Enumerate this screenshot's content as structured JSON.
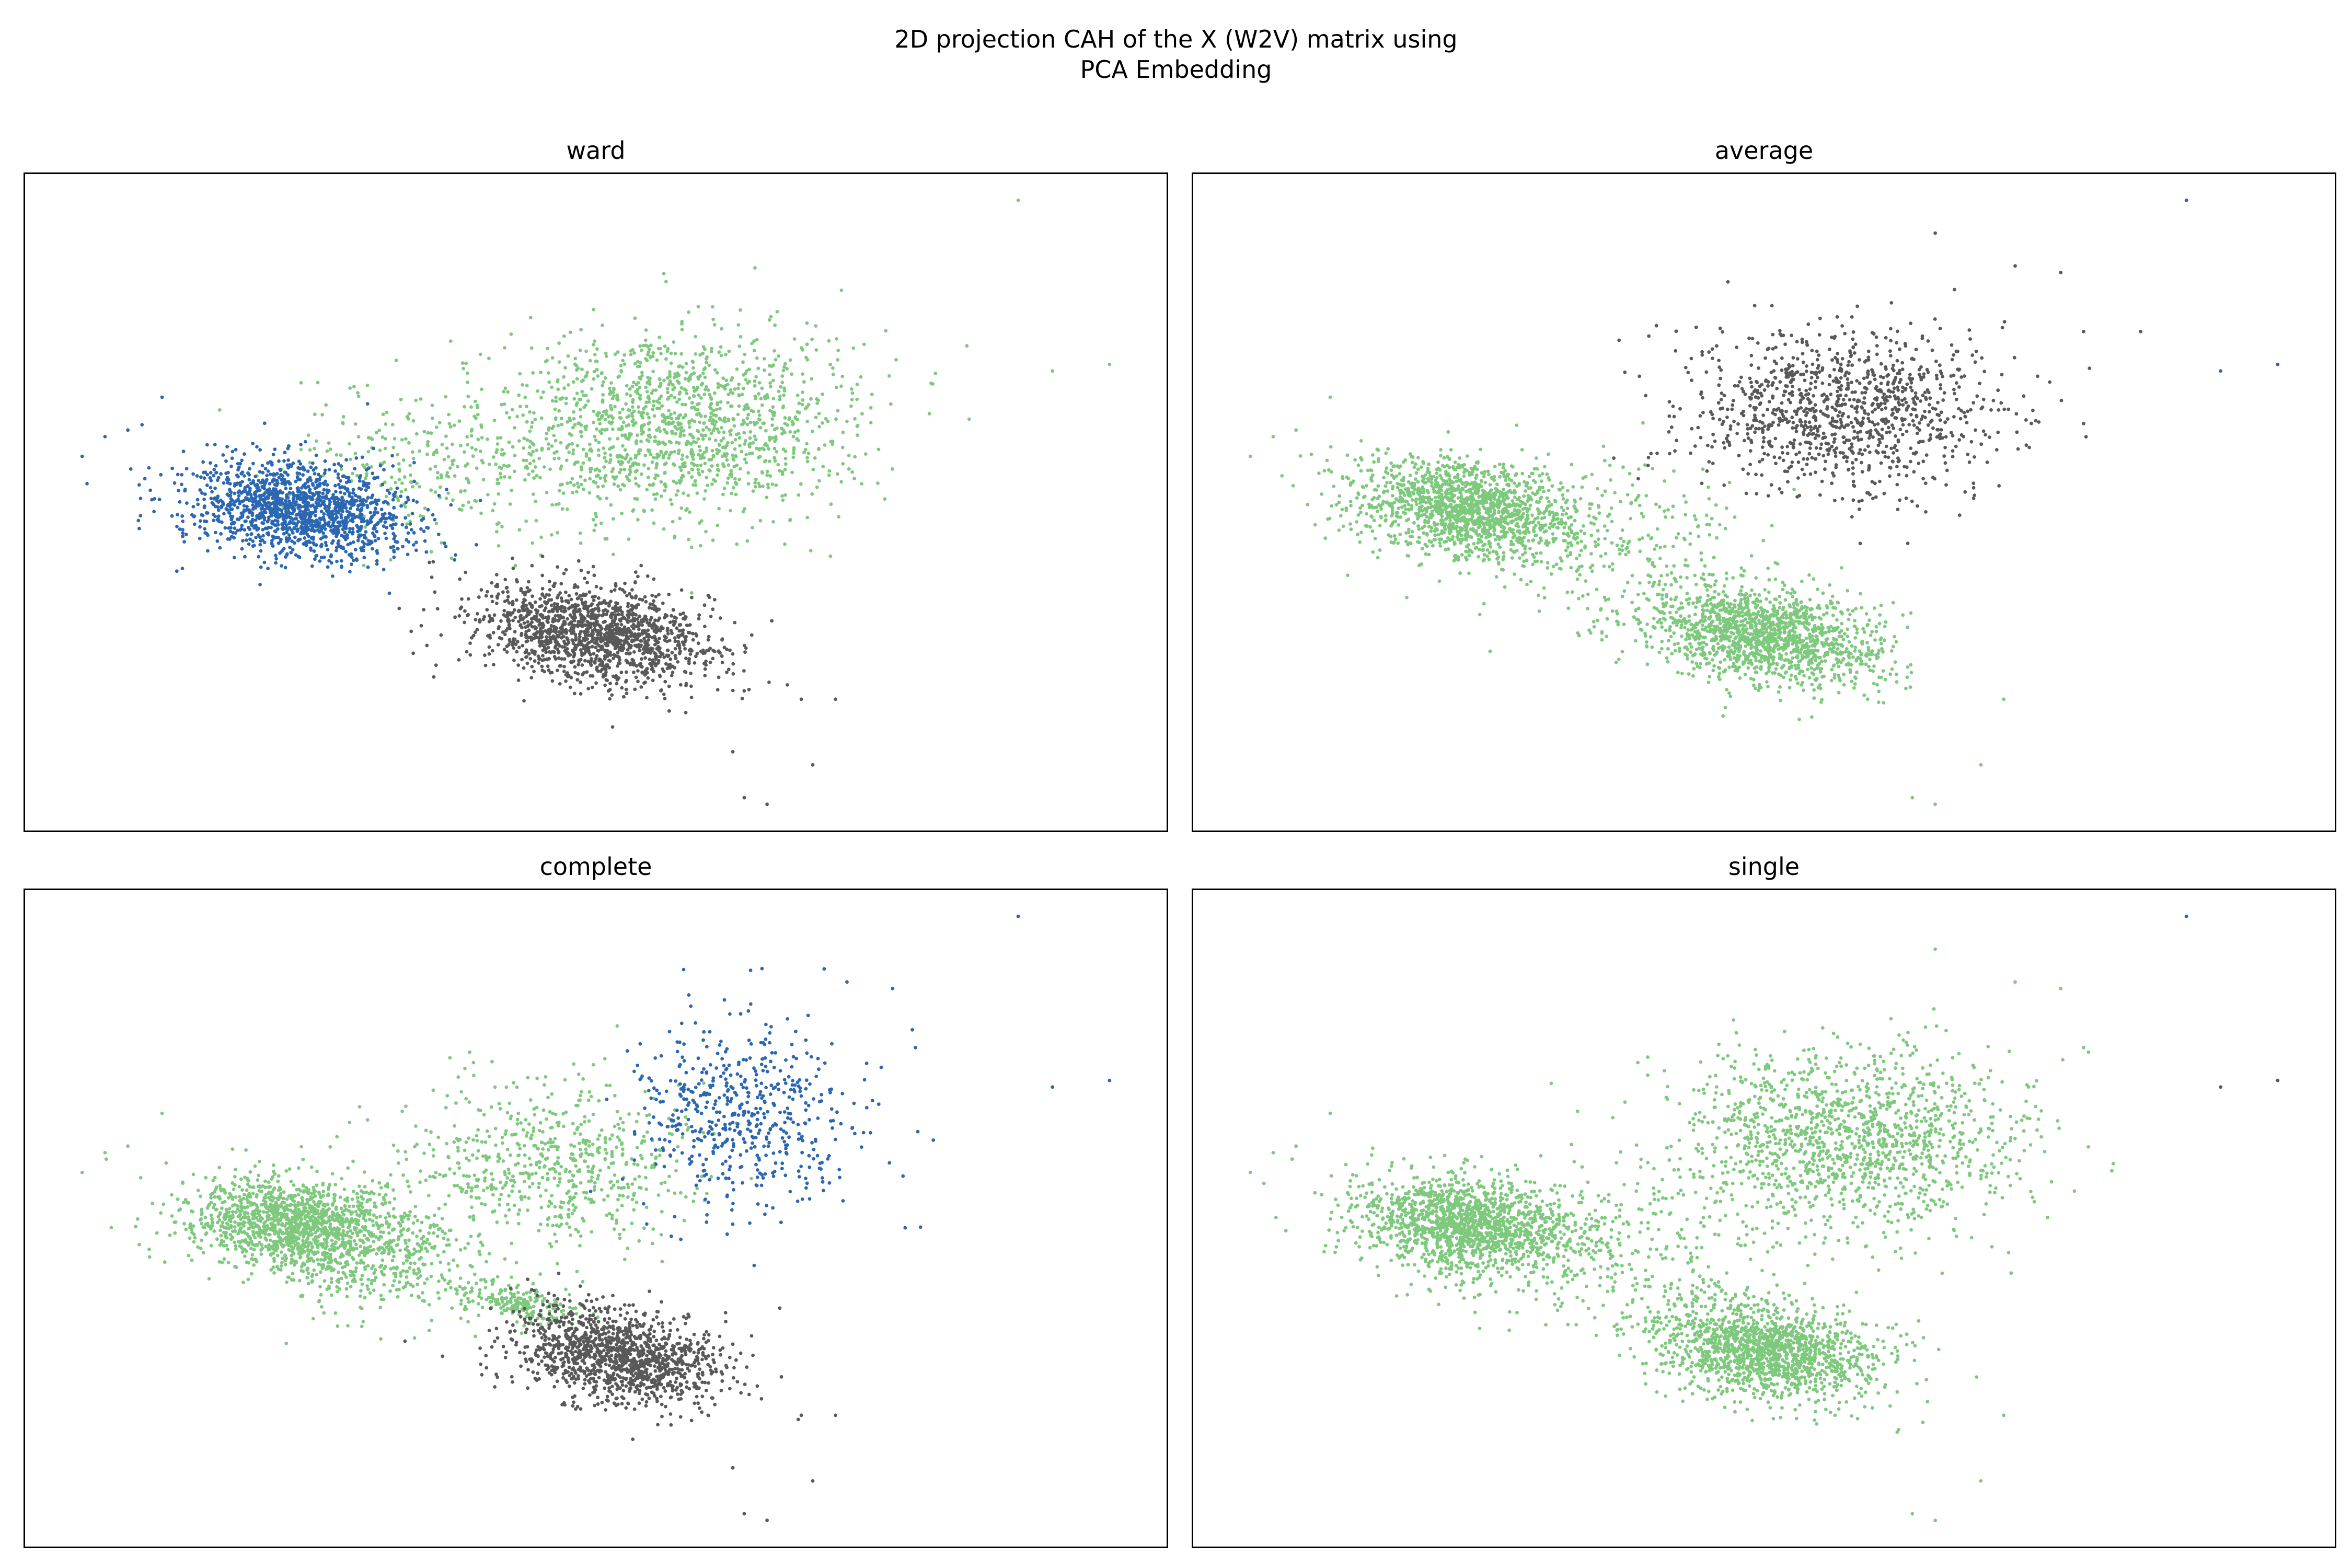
{
  "figure": {
    "title_line1": "2D projection CAH of the X (W2V) matrix using",
    "title_line2": "PCA Embedding"
  },
  "colors": {
    "green": "#7fc97f",
    "gray": "#595959",
    "blue": "#2c67b1"
  },
  "chart_data": [
    {
      "type": "scatter",
      "title": "ward",
      "xlabel": "",
      "ylabel": "",
      "xlim": [
        0,
        100
      ],
      "ylim": [
        0,
        100
      ],
      "grid": false,
      "ticks": false,
      "series": [
        {
          "color": "#7fc97f",
          "clusters": [
            {
              "cx": 57,
              "cy": 62,
              "sx": 7.5,
              "sy": 7,
              "n": 1400
            },
            {
              "cx": 36,
              "cy": 56,
              "sx": 7,
              "sy": 6,
              "n": 300
            }
          ],
          "outliers": [
            [
              87,
              96
            ],
            [
              90,
              70
            ],
            [
              95,
              71
            ]
          ]
        },
        {
          "color": "#595959",
          "clusters": [
            {
              "cx": 50,
              "cy": 30,
              "sx": 5.5,
              "sy": 3.5,
              "rot": -25,
              "n": 1500
            }
          ],
          "outliers": [
            [
              63,
              5
            ],
            [
              65,
              4
            ],
            [
              69,
              10
            ],
            [
              62,
              12
            ],
            [
              68,
              20
            ],
            [
              34,
              27
            ],
            [
              38,
              26
            ],
            [
              71,
              20
            ]
          ]
        },
        {
          "color": "#2c67b1",
          "clusters": [
            {
              "cx": 24,
              "cy": 49,
              "sx": 5,
              "sy": 3.5,
              "rot": -18,
              "n": 1500
            }
          ],
          "outliers": [
            [
              5,
              57
            ],
            [
              7,
              60
            ],
            [
              9,
              61
            ],
            [
              12,
              66
            ],
            [
              30,
              65
            ],
            [
              10,
              46
            ],
            [
              16,
              45
            ]
          ]
        }
      ]
    },
    {
      "type": "scatter",
      "title": "average",
      "xlabel": "",
      "ylabel": "",
      "xlim": [
        0,
        100
      ],
      "ylim": [
        0,
        100
      ],
      "grid": false,
      "ticks": false,
      "series": [
        {
          "color": "#7fc97f",
          "clusters": [
            {
              "cx": 24,
              "cy": 49,
              "sx": 5,
              "sy": 3.5,
              "rot": -18,
              "n": 1500
            },
            {
              "cx": 50,
              "cy": 30,
              "sx": 5.5,
              "sy": 3.5,
              "rot": -25,
              "n": 1500
            },
            {
              "cx": 36,
              "cy": 45,
              "sx": 6,
              "sy": 6,
              "n": 250
            }
          ],
          "outliers": [
            [
              5,
              57
            ],
            [
              7,
              60
            ],
            [
              9,
              61
            ],
            [
              12,
              66
            ],
            [
              63,
              5
            ],
            [
              65,
              4
            ],
            [
              69,
              10
            ],
            [
              71,
              20
            ]
          ]
        },
        {
          "color": "#595959",
          "clusters": [
            {
              "cx": 57,
              "cy": 64,
              "sx": 7,
              "sy": 6,
              "n": 1100
            }
          ],
          "outliers": [
            [
              65,
              91
            ],
            [
              72,
              86
            ],
            [
              76,
              85
            ],
            [
              78,
              76
            ],
            [
              83,
              76
            ],
            [
              78,
              62
            ]
          ]
        },
        {
          "color": "#2c67b1",
          "clusters": [],
          "outliers": [
            [
              87,
              96
            ],
            [
              90,
              70
            ],
            [
              95,
              71
            ]
          ]
        }
      ]
    },
    {
      "type": "scatter",
      "title": "complete",
      "xlabel": "",
      "ylabel": "",
      "xlim": [
        0,
        100
      ],
      "ylim": [
        0,
        100
      ],
      "grid": false,
      "ticks": false,
      "series": [
        {
          "color": "#7fc97f",
          "clusters": [
            {
              "cx": 24,
              "cy": 49,
              "sx": 5,
              "sy": 3.5,
              "rot": -18,
              "n": 1500
            },
            {
              "cx": 46,
              "cy": 58,
              "sx": 6,
              "sy": 6.5,
              "n": 650
            },
            {
              "cx": 43,
              "cy": 37,
              "sx": 2.5,
              "sy": 1.5,
              "rot": -20,
              "n": 200
            },
            {
              "cx": 32,
              "cy": 42,
              "sx": 5,
              "sy": 4,
              "n": 250
            }
          ],
          "outliers": [
            [
              5,
              57
            ],
            [
              7,
              60
            ],
            [
              9,
              61
            ],
            [
              12,
              66
            ],
            [
              30,
              65
            ],
            [
              10,
              46
            ]
          ]
        },
        {
          "color": "#595959",
          "clusters": [
            {
              "cx": 52,
              "cy": 29,
              "sx": 5,
              "sy": 3.3,
              "rot": -25,
              "n": 1300
            }
          ],
          "outliers": [
            [
              63,
              5
            ],
            [
              65,
              4
            ],
            [
              69,
              10
            ],
            [
              62,
              12
            ],
            [
              68,
              20
            ],
            [
              71,
              20
            ]
          ]
        },
        {
          "color": "#2c67b1",
          "clusters": [
            {
              "cx": 63,
              "cy": 66,
              "sx": 5,
              "sy": 7,
              "n": 550
            }
          ],
          "outliers": [
            [
              87,
              96
            ],
            [
              90,
              70
            ],
            [
              95,
              71
            ],
            [
              70,
              88
            ],
            [
              72,
              86
            ],
            [
              76,
              85
            ],
            [
              78,
              76
            ],
            [
              75,
              73
            ]
          ]
        }
      ]
    },
    {
      "type": "scatter",
      "title": "single",
      "xlabel": "",
      "ylabel": "",
      "xlim": [
        0,
        100
      ],
      "ylim": [
        0,
        100
      ],
      "grid": false,
      "ticks": false,
      "series": [
        {
          "color": "#7fc97f",
          "clusters": [
            {
              "cx": 24,
              "cy": 49,
              "sx": 5,
              "sy": 3.5,
              "rot": -18,
              "n": 1500
            },
            {
              "cx": 50,
              "cy": 30,
              "sx": 5.5,
              "sy": 3.5,
              "rot": -25,
              "n": 1500
            },
            {
              "cx": 57,
              "cy": 62,
              "sx": 7.5,
              "sy": 7,
              "n": 1400
            },
            {
              "cx": 36,
              "cy": 45,
              "sx": 6,
              "sy": 6,
              "n": 250
            }
          ],
          "outliers": [
            [
              5,
              57
            ],
            [
              7,
              60
            ],
            [
              9,
              61
            ],
            [
              12,
              66
            ],
            [
              63,
              5
            ],
            [
              65,
              4
            ],
            [
              69,
              10
            ],
            [
              71,
              20
            ],
            [
              65,
              91
            ],
            [
              72,
              86
            ],
            [
              76,
              85
            ],
            [
              78,
              76
            ]
          ]
        },
        {
          "color": "#595959",
          "clusters": [],
          "outliers": [
            [
              90,
              70
            ],
            [
              95,
              71
            ]
          ]
        },
        {
          "color": "#2c67b1",
          "clusters": [],
          "outliers": [
            [
              87,
              96
            ]
          ]
        }
      ]
    }
  ]
}
